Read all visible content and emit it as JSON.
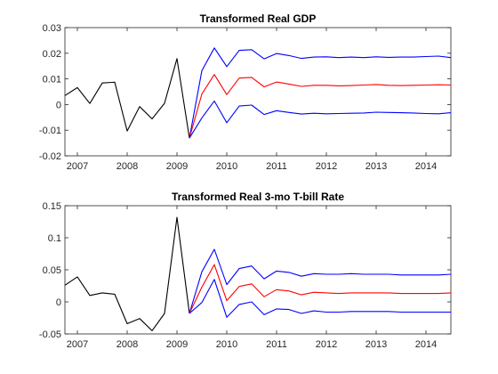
{
  "colors": {
    "historical": "#000000",
    "upper": "#0000ff",
    "forecast": "#ff0000",
    "lower": "#0000ff"
  },
  "chart_data": [
    {
      "type": "line",
      "title": "Transformed Real GDP",
      "xlabel": "",
      "ylabel": "",
      "xlim": [
        2006.75,
        2014.5
      ],
      "ylim": [
        -0.02,
        0.03
      ],
      "grid": false,
      "x_ticks": [
        2007,
        2008,
        2009,
        2010,
        2011,
        2012,
        2013,
        2014
      ],
      "x_tick_labels": [
        "2007",
        "2008",
        "2009",
        "2010",
        "2011",
        "2012",
        "2013",
        "2014"
      ],
      "y_ticks": [
        -0.02,
        -0.01,
        0,
        0.01,
        0.02,
        0.03
      ],
      "y_tick_labels": [
        "-0.02",
        "-0.01",
        "0",
        "0.01",
        "0.02",
        "0.03"
      ],
      "series": [
        {
          "key": "historical",
          "color_key": "historical",
          "x": [
            2006.75,
            2007.0,
            2007.25,
            2007.5,
            2007.75,
            2008.0,
            2008.25,
            2008.5,
            2008.75,
            2009.0,
            2009.25
          ],
          "y": [
            0.0035,
            0.0066,
            0.0004,
            0.0084,
            0.0087,
            -0.0103,
            -0.0008,
            -0.0056,
            0.0005,
            0.0179,
            -0.0131
          ]
        },
        {
          "key": "upper",
          "color_key": "upper",
          "x": [
            2009.25,
            2009.5,
            2009.75,
            2010.0,
            2010.25,
            2010.5,
            2010.75,
            2011.0,
            2011.25,
            2011.5,
            2011.75,
            2012.0,
            2012.25,
            2012.5,
            2012.75,
            2013.0,
            2013.25,
            2013.5,
            2013.75,
            2014.0,
            2014.25,
            2014.5
          ],
          "y": [
            -0.0131,
            0.0132,
            0.0221,
            0.0148,
            0.0211,
            0.0214,
            0.0178,
            0.0199,
            0.0191,
            0.018,
            0.0185,
            0.0186,
            0.0183,
            0.0185,
            0.0183,
            0.0186,
            0.0184,
            0.0185,
            0.0185,
            0.0187,
            0.0189,
            0.0183
          ]
        },
        {
          "key": "forecast",
          "color_key": "forecast",
          "x": [
            2009.25,
            2009.5,
            2009.75,
            2010.0,
            2010.25,
            2010.5,
            2010.75,
            2011.0,
            2011.25,
            2011.5,
            2011.75,
            2012.0,
            2012.25,
            2012.5,
            2012.75,
            2013.0,
            2013.25,
            2013.5,
            2013.75,
            2014.0,
            2014.25,
            2014.5
          ],
          "y": [
            -0.0131,
            0.0041,
            0.0117,
            0.0039,
            0.0103,
            0.0106,
            0.0069,
            0.0088,
            0.008,
            0.0071,
            0.0075,
            0.0075,
            0.0073,
            0.0074,
            0.0076,
            0.0078,
            0.0075,
            0.0074,
            0.0075,
            0.0076,
            0.0077,
            0.0076
          ]
        },
        {
          "key": "lower",
          "color_key": "lower",
          "x": [
            2009.25,
            2009.5,
            2009.75,
            2010.0,
            2010.25,
            2010.5,
            2010.75,
            2011.0,
            2011.25,
            2011.5,
            2011.75,
            2012.0,
            2012.25,
            2012.5,
            2012.75,
            2013.0,
            2013.25,
            2013.5,
            2013.75,
            2014.0,
            2014.25,
            2014.5
          ],
          "y": [
            -0.0131,
            -0.0052,
            0.0014,
            -0.0071,
            -0.0006,
            -0.0002,
            -0.0039,
            -0.0024,
            -0.0031,
            -0.0037,
            -0.0034,
            -0.0036,
            -0.0035,
            -0.0034,
            -0.0033,
            -0.003,
            -0.0031,
            -0.0032,
            -0.0033,
            -0.0035,
            -0.0036,
            -0.0032
          ]
        }
      ]
    },
    {
      "type": "line",
      "title": "Transformed Real 3-mo T-bill Rate",
      "xlabel": "",
      "ylabel": "",
      "xlim": [
        2006.75,
        2014.5
      ],
      "ylim": [
        -0.05,
        0.15
      ],
      "grid": false,
      "x_ticks": [
        2007,
        2008,
        2009,
        2010,
        2011,
        2012,
        2013,
        2014
      ],
      "x_tick_labels": [
        "2007",
        "2008",
        "2009",
        "2010",
        "2011",
        "2012",
        "2013",
        "2014"
      ],
      "y_ticks": [
        -0.05,
        0,
        0.05,
        0.1,
        0.15
      ],
      "y_tick_labels": [
        "-0.05",
        "0",
        "0.05",
        "0.1",
        "0.15"
      ],
      "series": [
        {
          "key": "historical",
          "color_key": "historical",
          "x": [
            2006.75,
            2007.0,
            2007.25,
            2007.5,
            2007.75,
            2008.0,
            2008.25,
            2008.5,
            2008.75,
            2009.0,
            2009.25
          ],
          "y": [
            0.026,
            0.039,
            0.01,
            0.014,
            0.012,
            -0.034,
            -0.026,
            -0.045,
            -0.018,
            0.132,
            -0.018
          ]
        },
        {
          "key": "upper",
          "color_key": "upper",
          "x": [
            2009.25,
            2009.5,
            2009.75,
            2010.0,
            2010.25,
            2010.5,
            2010.75,
            2011.0,
            2011.25,
            2011.5,
            2011.75,
            2012.0,
            2012.25,
            2012.5,
            2012.75,
            2013.0,
            2013.25,
            2013.5,
            2013.75,
            2014.0,
            2014.25,
            2014.5
          ],
          "y": [
            -0.018,
            0.047,
            0.082,
            0.027,
            0.052,
            0.056,
            0.036,
            0.048,
            0.046,
            0.04,
            0.044,
            0.043,
            0.043,
            0.044,
            0.043,
            0.043,
            0.043,
            0.042,
            0.042,
            0.042,
            0.042,
            0.043
          ]
        },
        {
          "key": "forecast",
          "color_key": "forecast",
          "x": [
            2009.25,
            2009.5,
            2009.75,
            2010.0,
            2010.25,
            2010.5,
            2010.75,
            2011.0,
            2011.25,
            2011.5,
            2011.75,
            2012.0,
            2012.25,
            2012.5,
            2012.75,
            2013.0,
            2013.25,
            2013.5,
            2013.75,
            2014.0,
            2014.25,
            2014.5
          ],
          "y": [
            -0.018,
            0.023,
            0.058,
            0.002,
            0.024,
            0.028,
            0.008,
            0.019,
            0.017,
            0.011,
            0.015,
            0.014,
            0.013,
            0.014,
            0.014,
            0.014,
            0.014,
            0.013,
            0.013,
            0.013,
            0.013,
            0.014
          ]
        },
        {
          "key": "lower",
          "color_key": "lower",
          "x": [
            2009.25,
            2009.5,
            2009.75,
            2010.0,
            2010.25,
            2010.5,
            2010.75,
            2011.0,
            2011.25,
            2011.5,
            2011.75,
            2012.0,
            2012.25,
            2012.5,
            2012.75,
            2013.0,
            2013.25,
            2013.5,
            2013.75,
            2014.0,
            2014.25,
            2014.5
          ],
          "y": [
            -0.018,
            -0.001,
            0.035,
            -0.024,
            -0.004,
            0.0,
            -0.02,
            -0.011,
            -0.012,
            -0.018,
            -0.014,
            -0.016,
            -0.016,
            -0.015,
            -0.015,
            -0.015,
            -0.015,
            -0.016,
            -0.016,
            -0.016,
            -0.016,
            -0.016
          ]
        }
      ]
    }
  ]
}
